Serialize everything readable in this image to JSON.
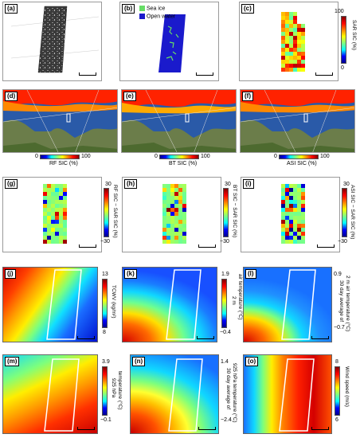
{
  "panels": {
    "a": {
      "label": "(a)"
    },
    "b": {
      "label": "(b)",
      "legend": [
        {
          "text": "Sea ice",
          "color": "#66dd66"
        },
        {
          "text": "Open water",
          "color": "#1a1acc"
        }
      ]
    },
    "c": {
      "label": "(c)",
      "cbar_max": "100",
      "cbar_min": "0",
      "cbar_label": "SAR SIC (%)"
    },
    "d": {
      "label": "(d)",
      "cbar_min": "0",
      "cbar_max": "100",
      "cbar_label": "RF SIC (%)"
    },
    "e": {
      "label": "(e)",
      "cbar_min": "0",
      "cbar_max": "100",
      "cbar_label": "BT SIC (%)"
    },
    "f": {
      "label": "(f)",
      "cbar_min": "0",
      "cbar_max": "100",
      "cbar_label": "ASI SIC (%)"
    },
    "g": {
      "label": "(g)",
      "cbar_max": "30",
      "cbar_min": "−30",
      "cbar_label": "RF SIC − SAR SIC (%)"
    },
    "h": {
      "label": "(h)",
      "cbar_max": "30",
      "cbar_min": "−30",
      "cbar_label": "BT SIC − SAR SIC (%)"
    },
    "i": {
      "label": "(i)",
      "cbar_max": "30",
      "cbar_min": "−30",
      "cbar_label": "ASI SIC − SAR SIC (%)"
    },
    "j": {
      "label": "(j)",
      "cbar_max": "13",
      "cbar_min": "8",
      "cbar_label": "TCWV (kg/m²)"
    },
    "k": {
      "label": "(k)",
      "cbar_max": "1.9",
      "cbar_min": "−0.4",
      "cbar_label1": "2 m",
      "cbar_label2": "air temperature (°C)"
    },
    "l": {
      "label": "(l)",
      "cbar_max": "0.9",
      "cbar_min": "−0.7",
      "cbar_label1": "30 day average of",
      "cbar_label2": "2 m air temperature (°C)"
    },
    "m": {
      "label": "(m)",
      "cbar_max": "3.9",
      "cbar_min": "−0.1",
      "cbar_label1": "925 hPa",
      "cbar_label2": "temperature (°C)"
    },
    "n": {
      "label": "(n)",
      "cbar_max": "1.4",
      "cbar_min": "−2.4",
      "cbar_label1": "30 day average of",
      "cbar_label2": "925 hPa temperature (°C)"
    },
    "o": {
      "label": "(o)",
      "cbar_max": "8",
      "cbar_min": "6",
      "cbar_label": "Wind speed (m/s)"
    }
  },
  "colors": {
    "jet": [
      "#00008f",
      "#0000ff",
      "#00ffff",
      "#80ff80",
      "#ffff00",
      "#ff7f00",
      "#ff0000",
      "#800000"
    ]
  }
}
